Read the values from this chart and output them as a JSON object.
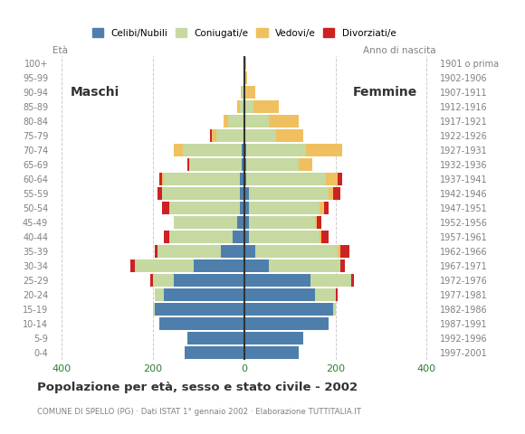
{
  "age_groups": [
    "0-4",
    "5-9",
    "10-14",
    "15-19",
    "20-24",
    "25-29",
    "30-34",
    "35-39",
    "40-44",
    "45-49",
    "50-54",
    "55-59",
    "60-64",
    "65-69",
    "70-74",
    "75-79",
    "80-84",
    "85-89",
    "90-94",
    "95-99",
    "100+"
  ],
  "birth_years": [
    "1997-2001",
    "1992-1996",
    "1987-1991",
    "1982-1986",
    "1977-1981",
    "1972-1976",
    "1967-1971",
    "1962-1966",
    "1957-1961",
    "1952-1956",
    "1947-1951",
    "1942-1946",
    "1937-1941",
    "1932-1936",
    "1927-1931",
    "1922-1926",
    "1917-1921",
    "1912-1916",
    "1907-1911",
    "1902-1906",
    "1901 o prima"
  ],
  "males": {
    "celibi": [
      130,
      125,
      185,
      195,
      175,
      155,
      110,
      50,
      25,
      15,
      10,
      10,
      10,
      5,
      5,
      0,
      0,
      0,
      0,
      0,
      0
    ],
    "coniugati": [
      0,
      0,
      0,
      5,
      20,
      45,
      130,
      140,
      140,
      140,
      155,
      170,
      165,
      115,
      130,
      60,
      35,
      10,
      5,
      2,
      2
    ],
    "vedovi": [
      0,
      0,
      0,
      0,
      0,
      0,
      0,
      0,
      0,
      0,
      0,
      0,
      5,
      0,
      20,
      10,
      10,
      5,
      2,
      0,
      0
    ],
    "divorziati": [
      0,
      0,
      0,
      0,
      0,
      5,
      10,
      5,
      10,
      0,
      15,
      10,
      5,
      5,
      0,
      5,
      0,
      0,
      0,
      0,
      0
    ]
  },
  "females": {
    "nubili": [
      120,
      130,
      185,
      195,
      155,
      145,
      55,
      25,
      10,
      10,
      10,
      10,
      5,
      5,
      5,
      0,
      0,
      0,
      0,
      0,
      0
    ],
    "coniugate": [
      0,
      0,
      0,
      5,
      45,
      90,
      155,
      180,
      155,
      145,
      155,
      175,
      175,
      115,
      130,
      70,
      55,
      20,
      5,
      2,
      2
    ],
    "vedove": [
      0,
      0,
      0,
      0,
      0,
      0,
      0,
      5,
      5,
      5,
      10,
      10,
      25,
      30,
      80,
      60,
      65,
      55,
      20,
      5,
      2
    ],
    "divorziate": [
      0,
      0,
      0,
      0,
      5,
      5,
      10,
      20,
      15,
      10,
      10,
      15,
      10,
      0,
      0,
      0,
      0,
      0,
      0,
      0,
      0
    ]
  },
  "colors": {
    "celibi": "#4e7fac",
    "coniugati": "#c5d9a0",
    "vedovi": "#f0c060",
    "divorziati": "#cc2222"
  },
  "xlim": 420,
  "title": "Popolazione per età, sesso e stato civile - 2002",
  "subtitle": "COMUNE DI SPELLO (PG) · Dati ISTAT 1° gennaio 2002 · Elaborazione TUTTITALIA.IT",
  "legend_labels": [
    "Celibi/Nubili",
    "Coniugati/e",
    "Vedovi/e",
    "Divorziati/e"
  ],
  "ylabel_left": "Età",
  "ylabel_right": "Anno di nascita",
  "label_maschi": "Maschi",
  "label_femmine": "Femmine",
  "bg_color": "#ffffff",
  "grid_color": "#cccccc",
  "axis_color": "#333333",
  "tick_color": "#2e7d32",
  "label_color": "#808080",
  "title_color": "#333333"
}
